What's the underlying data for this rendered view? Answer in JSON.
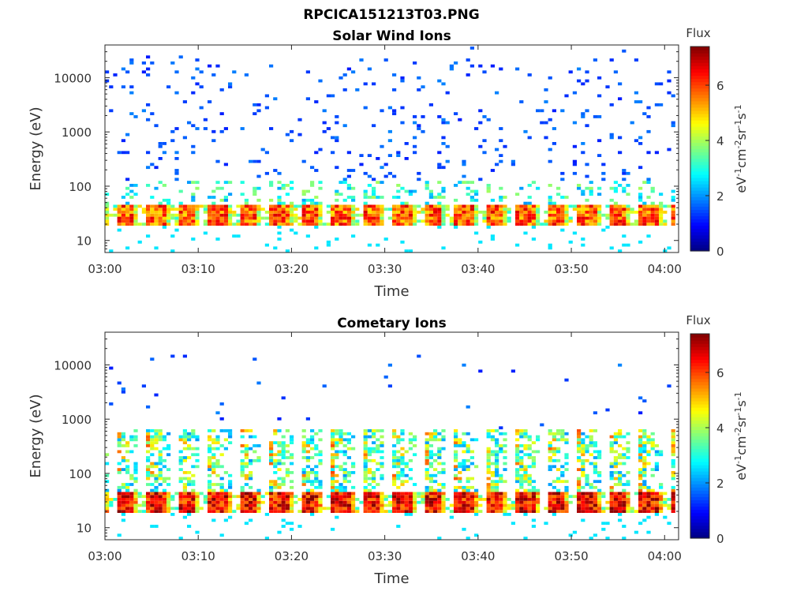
{
  "figure_title": "RPCICA151213T03.PNG",
  "chart_data": [
    {
      "type": "heatmap",
      "title": "Solar Wind Ions",
      "xlabel": "Time",
      "ylabel": "Energy (eV)",
      "x_tick_labels": [
        "03:00",
        "03:10",
        "03:20",
        "03:30",
        "03:40",
        "03:50",
        "04:00"
      ],
      "x_range_minutes": [
        0,
        61.5
      ],
      "y_scale": "log",
      "y_tick_values": [
        10,
        100,
        1000,
        10000
      ],
      "y_tick_labels": [
        "10",
        "100",
        "1000",
        "10000"
      ],
      "y_range": [
        6,
        40000
      ],
      "colorbar": {
        "title": "Flux",
        "label": "eV-1cm-2sr-1s-1",
        "range": [
          0,
          7.4
        ],
        "ticks": [
          0,
          2,
          4,
          6
        ],
        "colormap": "jet"
      },
      "description_bands": {
        "dominant_energy_eV": [
          20,
          45
        ],
        "peak_flux": 7,
        "sparse_background_energy_eV": [
          100,
          20000
        ],
        "background_flux": 1.5,
        "pulse_period_minutes": 3.3
      }
    },
    {
      "type": "heatmap",
      "title": "Cometary Ions",
      "xlabel": "Time",
      "ylabel": "Energy (eV)",
      "x_tick_labels": [
        "03:00",
        "03:10",
        "03:20",
        "03:30",
        "03:40",
        "03:50",
        "04:00"
      ],
      "x_range_minutes": [
        0,
        61.5
      ],
      "y_scale": "log",
      "y_tick_values": [
        10,
        100,
        1000,
        10000
      ],
      "y_tick_labels": [
        "10",
        "100",
        "1000",
        "10000"
      ],
      "y_range": [
        6,
        40000
      ],
      "colorbar": {
        "title": "Flux",
        "label": "eV-1cm-2sr-1s-1",
        "range": [
          0,
          7.4
        ],
        "ticks": [
          0,
          2,
          4,
          6
        ],
        "colormap": "jet"
      },
      "description_bands": {
        "dominant_energy_eV": [
          20,
          45
        ],
        "peak_flux": 7,
        "plume_top_energy_eV": 600,
        "sparse_background_energy_eV": [
          300,
          15000
        ],
        "pulse_period_minutes": 3.3
      }
    }
  ],
  "colors": {
    "axis": "#262626",
    "background": "#ffffff"
  }
}
